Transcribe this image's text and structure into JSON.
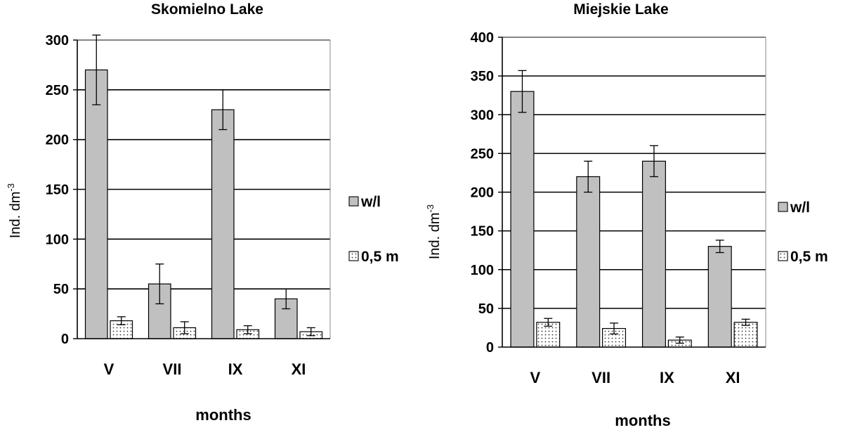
{
  "chart_data": [
    {
      "type": "bar",
      "title": "Skomielno Lake",
      "xlabel": "months",
      "ylabel": "Ind. dm-3",
      "categories": [
        "V",
        "VII",
        "IX",
        "XI"
      ],
      "ylim": [
        0,
        300
      ],
      "yticks": [
        0,
        50,
        100,
        150,
        200,
        250,
        300
      ],
      "grid": true,
      "legend_position": "right",
      "series": [
        {
          "name": "w/l",
          "values": [
            270,
            55,
            230,
            40
          ],
          "errors": [
            35,
            20,
            20,
            10
          ],
          "color": "#c0c0c0",
          "pattern": "solid"
        },
        {
          "name": "0,5 m",
          "values": [
            18,
            11,
            9,
            7
          ],
          "errors": [
            4,
            6,
            4,
            4
          ],
          "color": "#ffffff",
          "pattern": "dots"
        }
      ]
    },
    {
      "type": "bar",
      "title": "Miejskie Lake",
      "xlabel": "months",
      "ylabel": "Ind. dm-3",
      "categories": [
        "V",
        "VII",
        "IX",
        "XI"
      ],
      "ylim": [
        0,
        400
      ],
      "yticks": [
        0,
        50,
        100,
        150,
        200,
        250,
        300,
        350,
        400
      ],
      "grid": true,
      "legend_position": "right",
      "series": [
        {
          "name": "w/l",
          "values": [
            330,
            220,
            240,
            130
          ],
          "errors": [
            27,
            20,
            20,
            8
          ],
          "color": "#c0c0c0",
          "pattern": "solid"
        },
        {
          "name": "0,5 m",
          "values": [
            32,
            24,
            9,
            32
          ],
          "errors": [
            5,
            7,
            4,
            4
          ],
          "color": "#ffffff",
          "pattern": "dots"
        }
      ]
    }
  ]
}
